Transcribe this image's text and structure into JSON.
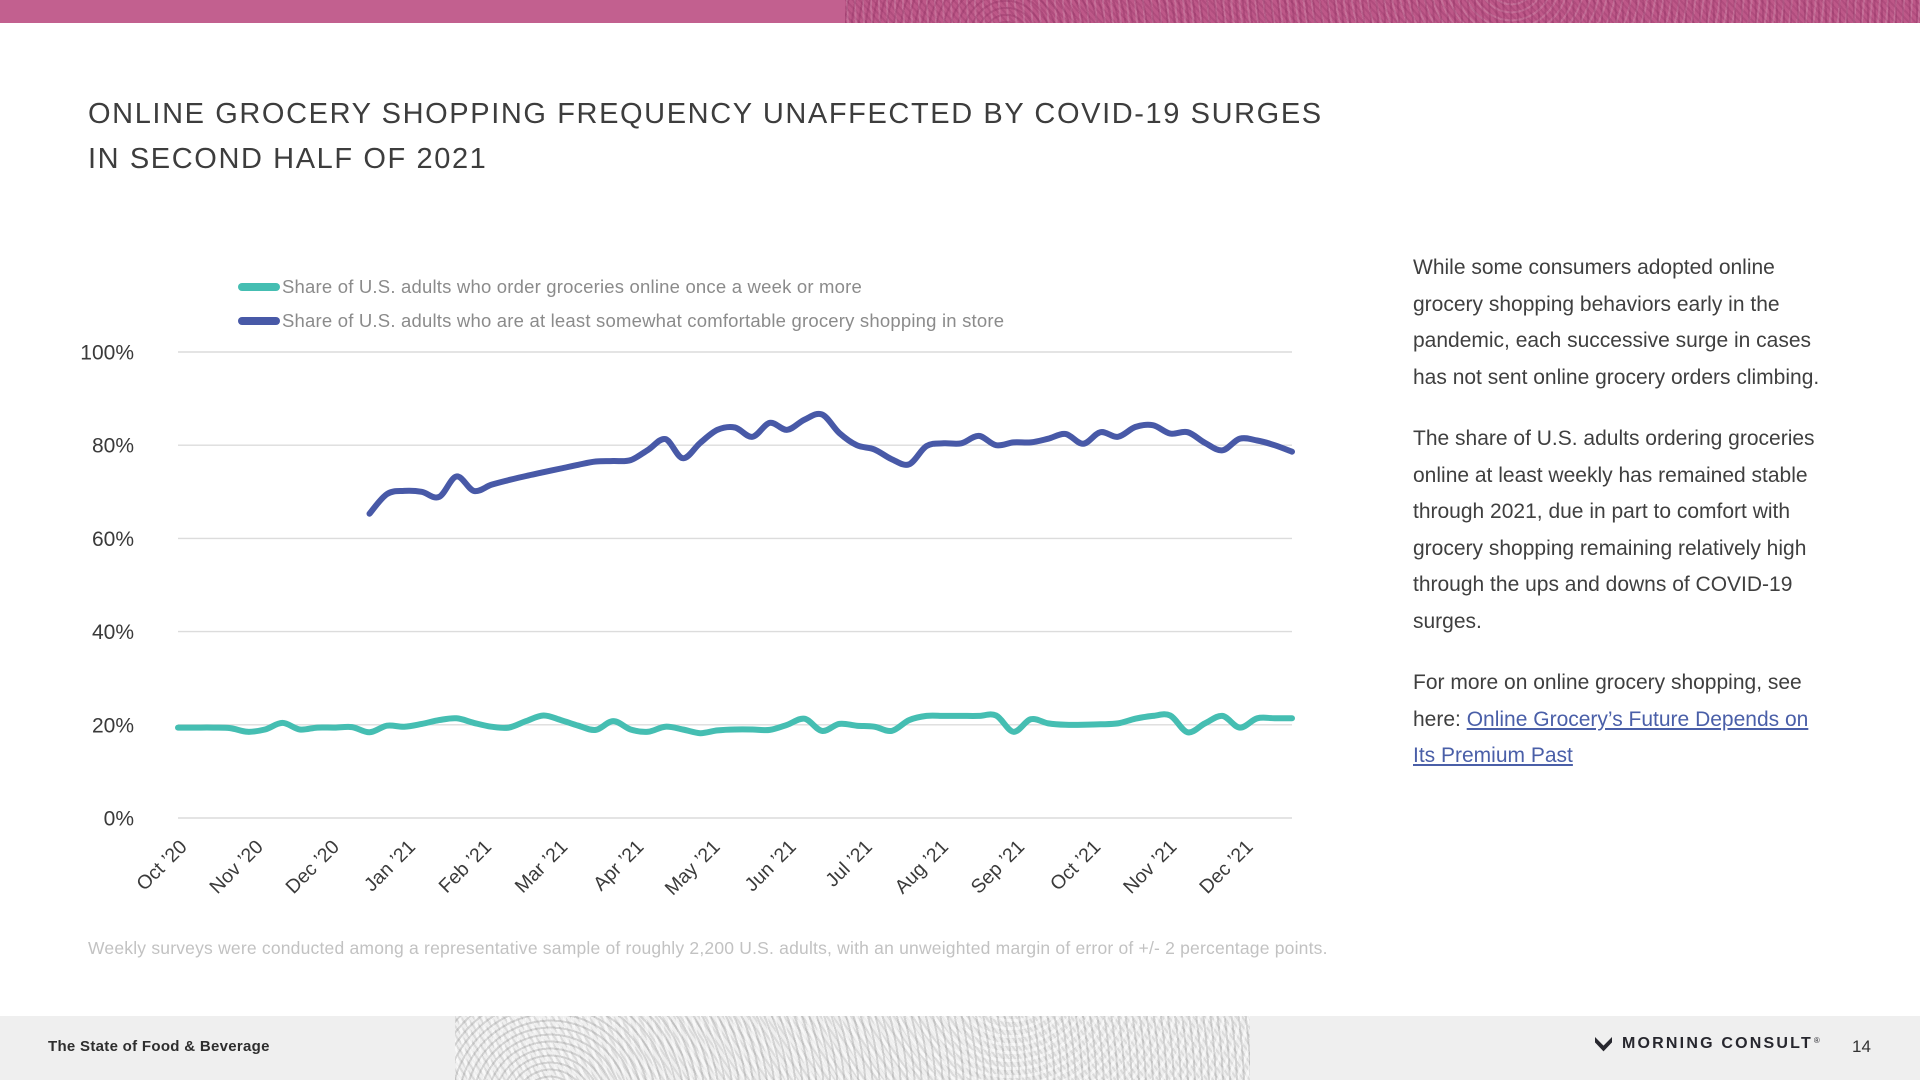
{
  "slide": {
    "title_line1": "ONLINE GROCERY SHOPPING FREQUENCY UNAFFECTED BY COVID-19 SURGES",
    "title_line2": "IN SECOND HALF OF 2021",
    "commentary": [
      "While some consumers adopted online grocery shopping behaviors early in the pandemic, each successive surge in cases has not sent online grocery orders climbing.",
      "The share of U.S. adults ordering groceries online at least weekly has remained stable through 2021, due in part to comfort with grocery shopping remaining relatively high through the ups and downs of COVID-19 surges."
    ],
    "more_prefix": "For more on online grocery shopping, see here: ",
    "link_text": "Online Grocery’s Future Depends on Its Premium Past",
    "footnote": "Weekly surveys were conducted among a representative sample of roughly 2,200 U.S. adults, with an unweighted margin of error of +/- 2 percentage points.",
    "footer": {
      "report_title": "The State of Food & Beverage",
      "brand": "MORNING CONSULT",
      "brand_mark": "®",
      "page_number": "14"
    }
  },
  "colors": {
    "accent_pink": "#c2608f",
    "teal": "#45beb2",
    "blue": "#4859a7",
    "link_blue": "#4a5fa8",
    "grid": "#dcdcdc",
    "axis_text": "#3a3a3a"
  },
  "chart_data": {
    "type": "line",
    "title": "",
    "xlabel": "",
    "ylabel": "",
    "ylim": [
      0,
      100
    ],
    "grid": true,
    "legend_position": "top-left",
    "x_unit": "weekly surveys, Oct 2020 - Dec 2021",
    "weeks_total": 64,
    "y_tick_values": [
      0,
      20,
      40,
      60,
      80,
      100
    ],
    "y_tick_labels": [
      "0%",
      "20%",
      "40%",
      "60%",
      "80%",
      "100%"
    ],
    "x_tick_labels": [
      "Oct ’20",
      "Nov ’20",
      "Dec ’20",
      "Jan ’21",
      "Feb ’21",
      "Mar ’21",
      "Apr ’21",
      "May ’21",
      "Jun ’21",
      "Jul ’21",
      "Aug ’21",
      "Sep ’21",
      "Oct ’21",
      "Nov ’21",
      "Dec ’21"
    ],
    "series": [
      {
        "name": "Share of U.S. adults who order groceries online once a week or more",
        "color": "#45beb2",
        "start_week": 0,
        "values": [
          19.4,
          19.4,
          19.4,
          19.3,
          18.5,
          19.0,
          20.4,
          19.0,
          19.4,
          19.4,
          19.5,
          18.4,
          19.8,
          19.6,
          20.2,
          21.0,
          21.4,
          20.4,
          19.6,
          19.4,
          20.8,
          22.0,
          21.0,
          19.8,
          18.9,
          20.8,
          19.0,
          18.5,
          19.6,
          19.0,
          18.2,
          18.8,
          19.0,
          19.0,
          18.9,
          20.0,
          21.3,
          18.7,
          20.2,
          19.8,
          19.6,
          18.7,
          21.0,
          21.9,
          21.9,
          21.9,
          21.9,
          22.0,
          18.5,
          21.2,
          20.3,
          20.0,
          20.0,
          20.1,
          20.3,
          21.3,
          21.9,
          22.0,
          18.4,
          20.3,
          21.9,
          19.4,
          21.4,
          21.4,
          21.4
        ]
      },
      {
        "name": "Share of U.S. adults who are at least somewhat comfortable grocery shopping in store",
        "color": "#4859a7",
        "start_week": 11,
        "values": [
          65.3,
          69.5,
          70.2,
          70.0,
          68.9,
          73.3,
          70.2,
          71.5,
          72.5,
          73.4,
          74.2,
          75.0,
          75.8,
          76.5,
          76.6,
          76.8,
          79.0,
          81.3,
          77.2,
          80.5,
          83.3,
          83.8,
          81.8,
          84.8,
          83.3,
          85.5,
          86.6,
          82.6,
          80.0,
          79.1,
          77.0,
          75.9,
          79.8,
          80.4,
          80.4,
          82.0,
          80.0,
          80.6,
          80.6,
          81.4,
          82.4,
          80.3,
          82.8,
          81.8,
          83.9,
          84.3,
          82.5,
          82.8,
          80.5,
          78.9,
          81.4,
          81.0,
          80.0,
          78.6
        ]
      }
    ]
  }
}
